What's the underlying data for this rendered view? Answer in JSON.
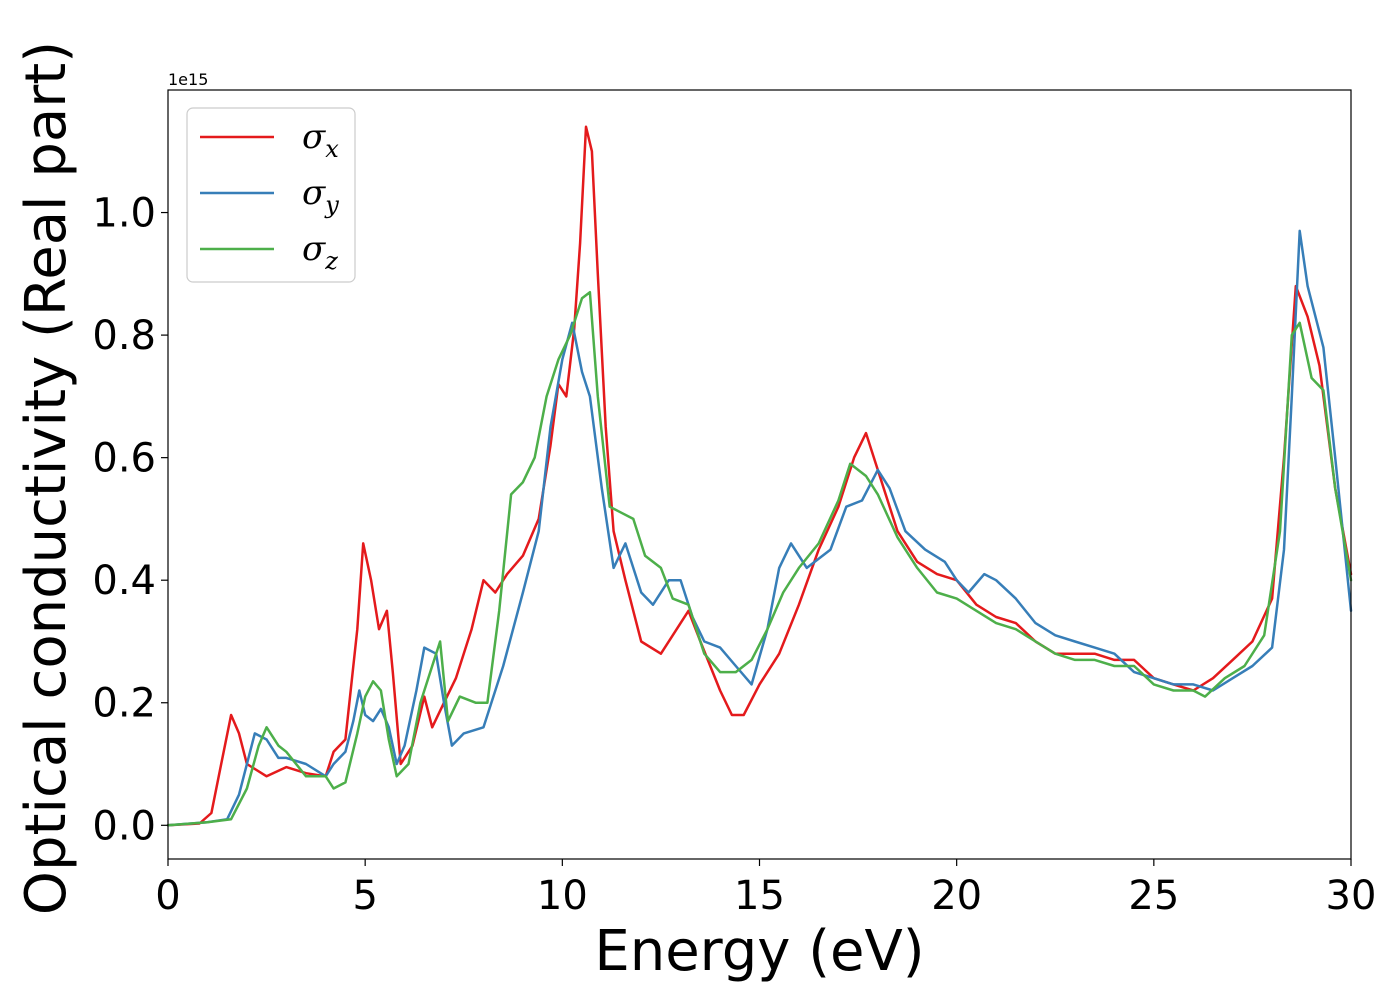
{
  "chart_data": {
    "type": "line",
    "xlabel": "Energy (eV)",
    "ylabel": "Optical conductivity (Real part)",
    "y_offset_text": "1e15",
    "xlim": [
      0,
      30
    ],
    "ylim": [
      -0.055,
      1.2
    ],
    "x_ticks": [
      "0",
      "5",
      "10",
      "15",
      "20",
      "25",
      "30"
    ],
    "y_ticks": [
      "0.0",
      "0.2",
      "0.4",
      "0.6",
      "0.8",
      "1.0"
    ],
    "x_tick_values": [
      0,
      5,
      10,
      15,
      20,
      25,
      30
    ],
    "y_tick_values": [
      0,
      0.2,
      0.4,
      0.6,
      0.8,
      1.0
    ],
    "grid": false,
    "legend_position": "upper-left",
    "series": [
      {
        "name": "σx",
        "name_base": "σ",
        "name_sub": "x",
        "color": "#e41a1c",
        "points": [
          [
            0,
            0
          ],
          [
            0.8,
            0.003
          ],
          [
            1.1,
            0.02
          ],
          [
            1.35,
            0.1
          ],
          [
            1.6,
            0.18
          ],
          [
            1.8,
            0.15
          ],
          [
            2.0,
            0.1
          ],
          [
            2.5,
            0.08
          ],
          [
            3.0,
            0.095
          ],
          [
            3.5,
            0.085
          ],
          [
            4.0,
            0.08
          ],
          [
            4.2,
            0.12
          ],
          [
            4.5,
            0.14
          ],
          [
            4.8,
            0.32
          ],
          [
            4.95,
            0.46
          ],
          [
            5.15,
            0.4
          ],
          [
            5.35,
            0.32
          ],
          [
            5.55,
            0.35
          ],
          [
            5.7,
            0.25
          ],
          [
            5.9,
            0.1
          ],
          [
            6.2,
            0.13
          ],
          [
            6.5,
            0.21
          ],
          [
            6.7,
            0.16
          ],
          [
            7.0,
            0.2
          ],
          [
            7.3,
            0.24
          ],
          [
            7.7,
            0.32
          ],
          [
            8.0,
            0.4
          ],
          [
            8.3,
            0.38
          ],
          [
            8.6,
            0.41
          ],
          [
            9.0,
            0.44
          ],
          [
            9.4,
            0.5
          ],
          [
            9.7,
            0.62
          ],
          [
            9.9,
            0.72
          ],
          [
            10.1,
            0.7
          ],
          [
            10.3,
            0.81
          ],
          [
            10.45,
            0.95
          ],
          [
            10.6,
            1.14
          ],
          [
            10.75,
            1.1
          ],
          [
            10.9,
            0.9
          ],
          [
            11.1,
            0.65
          ],
          [
            11.3,
            0.48
          ],
          [
            11.6,
            0.4
          ],
          [
            12.0,
            0.3
          ],
          [
            12.5,
            0.28
          ],
          [
            13.0,
            0.33
          ],
          [
            13.2,
            0.35
          ],
          [
            13.5,
            0.3
          ],
          [
            14.0,
            0.22
          ],
          [
            14.3,
            0.18
          ],
          [
            14.6,
            0.18
          ],
          [
            15.0,
            0.23
          ],
          [
            15.5,
            0.28
          ],
          [
            16.0,
            0.36
          ],
          [
            16.5,
            0.45
          ],
          [
            17.0,
            0.52
          ],
          [
            17.4,
            0.6
          ],
          [
            17.7,
            0.64
          ],
          [
            18.0,
            0.58
          ],
          [
            18.5,
            0.48
          ],
          [
            19.0,
            0.43
          ],
          [
            19.5,
            0.41
          ],
          [
            20.0,
            0.4
          ],
          [
            20.5,
            0.36
          ],
          [
            21.0,
            0.34
          ],
          [
            21.5,
            0.33
          ],
          [
            22.0,
            0.3
          ],
          [
            22.5,
            0.28
          ],
          [
            23.0,
            0.28
          ],
          [
            23.5,
            0.28
          ],
          [
            24.0,
            0.27
          ],
          [
            24.5,
            0.27
          ],
          [
            25.0,
            0.24
          ],
          [
            25.5,
            0.23
          ],
          [
            26.0,
            0.22
          ],
          [
            26.5,
            0.24
          ],
          [
            27.0,
            0.27
          ],
          [
            27.5,
            0.3
          ],
          [
            28.0,
            0.37
          ],
          [
            28.3,
            0.6
          ],
          [
            28.6,
            0.88
          ],
          [
            28.9,
            0.83
          ],
          [
            29.2,
            0.75
          ],
          [
            29.6,
            0.55
          ],
          [
            30.0,
            0.41
          ]
        ]
      },
      {
        "name": "σy",
        "name_base": "σ",
        "name_sub": "y",
        "color": "#377eb8",
        "points": [
          [
            0,
            0
          ],
          [
            1.0,
            0.005
          ],
          [
            1.5,
            0.01
          ],
          [
            1.8,
            0.05
          ],
          [
            2.2,
            0.15
          ],
          [
            2.5,
            0.14
          ],
          [
            2.8,
            0.11
          ],
          [
            3.0,
            0.11
          ],
          [
            3.5,
            0.1
          ],
          [
            4.0,
            0.08
          ],
          [
            4.2,
            0.1
          ],
          [
            4.5,
            0.12
          ],
          [
            4.7,
            0.17
          ],
          [
            4.85,
            0.22
          ],
          [
            5.0,
            0.18
          ],
          [
            5.2,
            0.17
          ],
          [
            5.4,
            0.19
          ],
          [
            5.6,
            0.16
          ],
          [
            5.8,
            0.1
          ],
          [
            6.0,
            0.13
          ],
          [
            6.3,
            0.22
          ],
          [
            6.5,
            0.29
          ],
          [
            6.8,
            0.28
          ],
          [
            7.0,
            0.2
          ],
          [
            7.2,
            0.13
          ],
          [
            7.5,
            0.15
          ],
          [
            8.0,
            0.16
          ],
          [
            8.5,
            0.26
          ],
          [
            9.0,
            0.38
          ],
          [
            9.4,
            0.48
          ],
          [
            9.7,
            0.65
          ],
          [
            10.0,
            0.76
          ],
          [
            10.25,
            0.82
          ],
          [
            10.5,
            0.74
          ],
          [
            10.7,
            0.7
          ],
          [
            11.0,
            0.55
          ],
          [
            11.3,
            0.42
          ],
          [
            11.6,
            0.46
          ],
          [
            12.0,
            0.38
          ],
          [
            12.3,
            0.36
          ],
          [
            12.7,
            0.4
          ],
          [
            13.0,
            0.4
          ],
          [
            13.3,
            0.34
          ],
          [
            13.6,
            0.3
          ],
          [
            14.0,
            0.29
          ],
          [
            14.4,
            0.26
          ],
          [
            14.8,
            0.23
          ],
          [
            15.2,
            0.32
          ],
          [
            15.5,
            0.42
          ],
          [
            15.8,
            0.46
          ],
          [
            16.2,
            0.42
          ],
          [
            16.8,
            0.45
          ],
          [
            17.2,
            0.52
          ],
          [
            17.6,
            0.53
          ],
          [
            18.0,
            0.58
          ],
          [
            18.3,
            0.55
          ],
          [
            18.7,
            0.48
          ],
          [
            19.2,
            0.45
          ],
          [
            19.7,
            0.43
          ],
          [
            20.0,
            0.4
          ],
          [
            20.3,
            0.38
          ],
          [
            20.7,
            0.41
          ],
          [
            21.0,
            0.4
          ],
          [
            21.5,
            0.37
          ],
          [
            22.0,
            0.33
          ],
          [
            22.5,
            0.31
          ],
          [
            23.0,
            0.3
          ],
          [
            23.5,
            0.29
          ],
          [
            24.0,
            0.28
          ],
          [
            24.5,
            0.25
          ],
          [
            25.0,
            0.24
          ],
          [
            25.5,
            0.23
          ],
          [
            26.0,
            0.23
          ],
          [
            26.5,
            0.22
          ],
          [
            27.0,
            0.24
          ],
          [
            27.5,
            0.26
          ],
          [
            28.0,
            0.29
          ],
          [
            28.3,
            0.45
          ],
          [
            28.5,
            0.7
          ],
          [
            28.7,
            0.97
          ],
          [
            28.9,
            0.88
          ],
          [
            29.3,
            0.78
          ],
          [
            29.6,
            0.6
          ],
          [
            30.0,
            0.35
          ]
        ]
      },
      {
        "name": "σz",
        "name_base": "σ",
        "name_sub": "z",
        "color": "#4daf4a",
        "points": [
          [
            0,
            0
          ],
          [
            1.0,
            0.005
          ],
          [
            1.6,
            0.01
          ],
          [
            2.0,
            0.06
          ],
          [
            2.3,
            0.13
          ],
          [
            2.5,
            0.16
          ],
          [
            2.8,
            0.13
          ],
          [
            3.0,
            0.12
          ],
          [
            3.5,
            0.08
          ],
          [
            4.0,
            0.08
          ],
          [
            4.2,
            0.06
          ],
          [
            4.5,
            0.07
          ],
          [
            4.8,
            0.15
          ],
          [
            5.0,
            0.21
          ],
          [
            5.2,
            0.235
          ],
          [
            5.4,
            0.22
          ],
          [
            5.6,
            0.14
          ],
          [
            5.8,
            0.08
          ],
          [
            6.1,
            0.1
          ],
          [
            6.4,
            0.2
          ],
          [
            6.7,
            0.26
          ],
          [
            6.9,
            0.3
          ],
          [
            7.1,
            0.17
          ],
          [
            7.4,
            0.21
          ],
          [
            7.8,
            0.2
          ],
          [
            8.1,
            0.2
          ],
          [
            8.4,
            0.35
          ],
          [
            8.7,
            0.54
          ],
          [
            9.0,
            0.56
          ],
          [
            9.3,
            0.6
          ],
          [
            9.6,
            0.7
          ],
          [
            9.9,
            0.76
          ],
          [
            10.2,
            0.8
          ],
          [
            10.5,
            0.86
          ],
          [
            10.7,
            0.87
          ],
          [
            10.9,
            0.7
          ],
          [
            11.2,
            0.52
          ],
          [
            11.5,
            0.51
          ],
          [
            11.8,
            0.5
          ],
          [
            12.1,
            0.44
          ],
          [
            12.5,
            0.42
          ],
          [
            12.8,
            0.37
          ],
          [
            13.2,
            0.36
          ],
          [
            13.6,
            0.28
          ],
          [
            14.0,
            0.25
          ],
          [
            14.4,
            0.25
          ],
          [
            14.8,
            0.27
          ],
          [
            15.2,
            0.32
          ],
          [
            15.6,
            0.38
          ],
          [
            16.0,
            0.42
          ],
          [
            16.5,
            0.46
          ],
          [
            17.0,
            0.53
          ],
          [
            17.3,
            0.59
          ],
          [
            17.7,
            0.57
          ],
          [
            18.0,
            0.54
          ],
          [
            18.5,
            0.47
          ],
          [
            19.0,
            0.42
          ],
          [
            19.5,
            0.38
          ],
          [
            20.0,
            0.37
          ],
          [
            20.5,
            0.35
          ],
          [
            21.0,
            0.33
          ],
          [
            21.5,
            0.32
          ],
          [
            22.0,
            0.3
          ],
          [
            22.5,
            0.28
          ],
          [
            23.0,
            0.27
          ],
          [
            23.5,
            0.27
          ],
          [
            24.0,
            0.26
          ],
          [
            24.5,
            0.26
          ],
          [
            25.0,
            0.23
          ],
          [
            25.5,
            0.22
          ],
          [
            26.0,
            0.22
          ],
          [
            26.3,
            0.21
          ],
          [
            26.8,
            0.24
          ],
          [
            27.3,
            0.26
          ],
          [
            27.8,
            0.31
          ],
          [
            28.2,
            0.48
          ],
          [
            28.5,
            0.8
          ],
          [
            28.7,
            0.82
          ],
          [
            29.0,
            0.73
          ],
          [
            29.3,
            0.71
          ],
          [
            29.6,
            0.55
          ],
          [
            30.0,
            0.4
          ]
        ]
      }
    ]
  }
}
